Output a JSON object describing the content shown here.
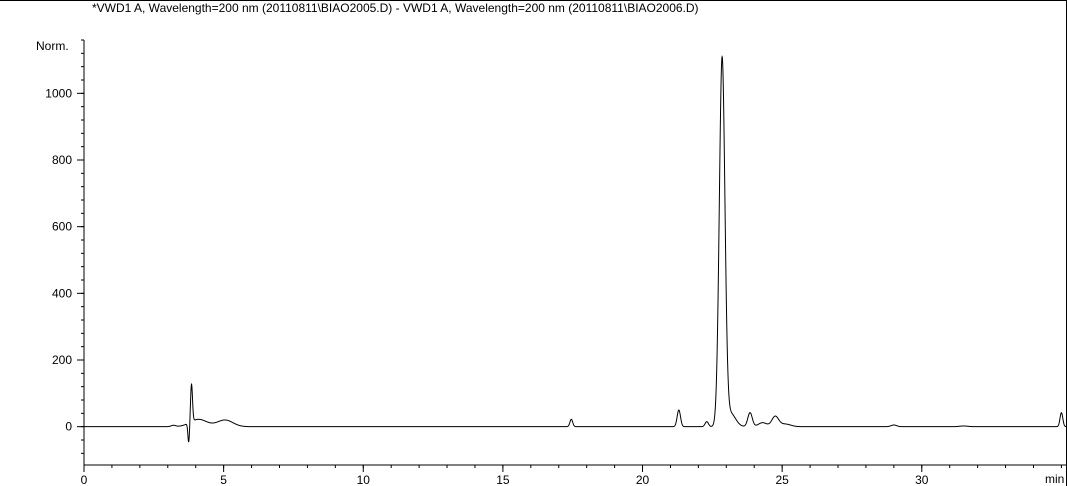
{
  "chart_data": {
    "type": "line",
    "title": "*VWD1 A, Wavelength=200 nm (20110811\\BIAO2005.D) - VWD1 A, Wavelength=200 nm (20110811\\BIAO2006.D)",
    "ylabel": "Norm.",
    "xlabel": "min",
    "xlim": [
      0,
      35.2
    ],
    "ylim": [
      -115,
      1160
    ],
    "x_ticks": [
      0,
      5,
      10,
      15,
      20,
      25,
      30
    ],
    "y_ticks": [
      0,
      200,
      400,
      600,
      800,
      1000
    ],
    "x_minor_step": 1,
    "y_minor_step": 40,
    "grid": false,
    "baseline": 0,
    "peaks": [
      {
        "x": 3.2,
        "y": 4,
        "w": 0.08
      },
      {
        "x": 3.85,
        "y": 112,
        "w": 0.035
      },
      {
        "x": 3.75,
        "y": -58,
        "w": 0.03
      },
      {
        "x": 4.1,
        "y": 22,
        "w": 0.3
      },
      {
        "x": 5.05,
        "y": 20,
        "w": 0.28
      },
      {
        "x": 17.45,
        "y": 22,
        "w": 0.05
      },
      {
        "x": 21.3,
        "y": 50,
        "w": 0.06
      },
      {
        "x": 22.3,
        "y": 15,
        "w": 0.06
      },
      {
        "x": 22.85,
        "y": 1100,
        "w": 0.1
      },
      {
        "x": 23.15,
        "y": 40,
        "w": 0.18
      },
      {
        "x": 23.85,
        "y": 42,
        "w": 0.08
      },
      {
        "x": 24.3,
        "y": 12,
        "w": 0.15
      },
      {
        "x": 24.75,
        "y": 30,
        "w": 0.12
      },
      {
        "x": 25.1,
        "y": 8,
        "w": 0.2
      },
      {
        "x": 29.0,
        "y": 5,
        "w": 0.1
      },
      {
        "x": 31.5,
        "y": 2,
        "w": 0.15
      },
      {
        "x": 35.0,
        "y": 42,
        "w": 0.05
      }
    ]
  }
}
